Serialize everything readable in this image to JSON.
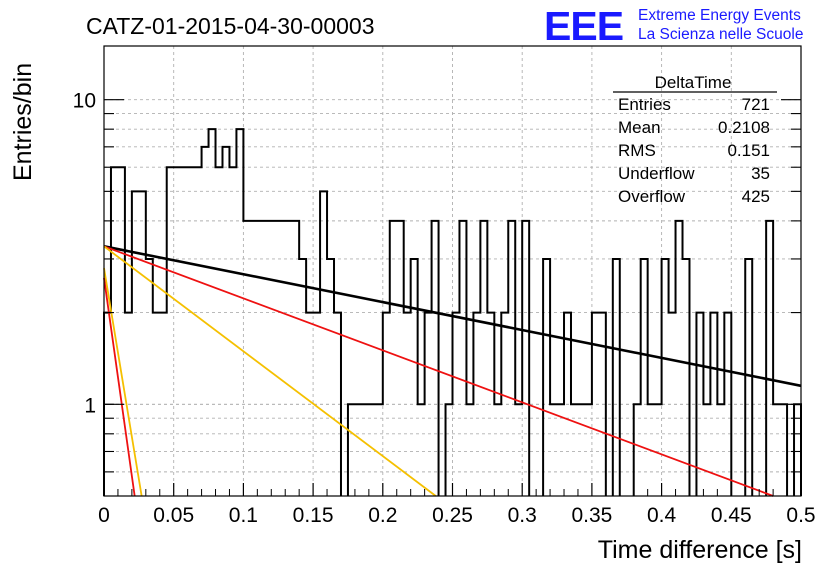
{
  "title": "CATZ-01-2015-04-30-00003",
  "logo": {
    "mark": "EEE",
    "line1": "Extreme Energy Events",
    "line2": "La Scienza nelle Scuole",
    "color": "#1a1aff"
  },
  "stats": {
    "name": "DeltaTime",
    "rows": [
      {
        "label": "Entries",
        "value": "721"
      },
      {
        "label": "Mean",
        "value": "0.2108"
      },
      {
        "label": "RMS",
        "value": "0.151"
      },
      {
        "label": "Underflow",
        "value": "35"
      },
      {
        "label": "Overflow",
        "value": "425"
      }
    ]
  },
  "chart_data": {
    "type": "histogram",
    "xlabel": "Time difference [s]",
    "ylabel": "Entries/bin",
    "xlim": [
      0,
      0.5
    ],
    "ylim": [
      0.5,
      15
    ],
    "ylog": true,
    "grid": true,
    "xticks": [
      "0",
      "0.05",
      "0.1",
      "0.15",
      "0.2",
      "0.25",
      "0.3",
      "0.35",
      "0.4",
      "0.45",
      "0.5"
    ],
    "yticks": [
      {
        "value": 1,
        "label": "1"
      },
      {
        "value": 10,
        "label": "10"
      }
    ],
    "bin_width": 0.005,
    "bin_start": 0,
    "values": [
      2,
      6,
      6,
      2,
      5,
      5,
      3,
      2,
      2,
      6,
      6,
      6,
      6,
      6,
      7,
      8,
      6,
      7,
      6,
      8,
      4,
      4,
      4,
      4,
      4,
      4,
      4,
      4,
      3,
      2,
      2,
      5,
      3,
      2,
      0,
      1,
      1,
      1,
      1,
      1,
      2,
      4,
      4,
      2,
      3,
      1,
      2,
      4,
      0,
      1,
      2,
      4,
      1,
      2,
      4,
      2,
      1,
      2,
      4,
      1,
      4,
      0,
      0,
      3,
      1,
      1,
      2,
      1,
      1,
      1,
      2,
      2,
      0,
      3,
      0,
      0,
      1,
      3,
      1,
      1,
      3,
      2,
      4,
      3,
      0,
      2,
      1,
      2,
      1,
      2,
      0,
      0,
      3,
      0,
      0,
      4,
      1,
      1,
      0,
      1
    ],
    "fits": [
      {
        "color": "#000000",
        "x": [
          0,
          0.5
        ],
        "y": [
          3.3,
          1.15
        ]
      },
      {
        "color": "#ee1111",
        "x": [
          0,
          0.48
        ],
        "y": [
          3.3,
          0.5
        ]
      },
      {
        "color": "#f5c000",
        "x": [
          0,
          0.238
        ],
        "y": [
          3.3,
          0.5
        ]
      },
      {
        "color": "#f5c000",
        "x": [
          0,
          0.027
        ],
        "y": [
          2.8,
          0.5
        ]
      },
      {
        "color": "#ee1111",
        "x": [
          0,
          0.022
        ],
        "y": [
          2.6,
          0.5
        ]
      }
    ]
  }
}
